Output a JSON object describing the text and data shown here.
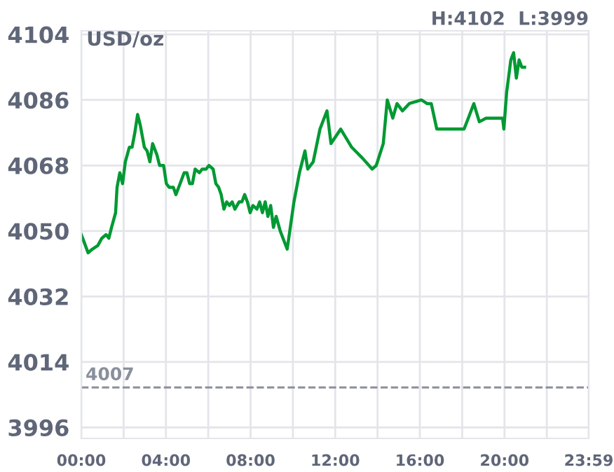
{
  "chart_data": {
    "type": "line",
    "ylabel": "USD/oz",
    "annotations": [
      "H:4102  L:3999"
    ],
    "x": [
      0,
      0.13,
      0.32,
      0.52,
      0.78,
      0.97,
      1.17,
      1.3,
      1.43,
      1.62,
      1.69,
      1.82,
      1.95,
      2.08,
      2.27,
      2.4,
      2.53,
      2.66,
      2.79,
      2.98,
      3.11,
      3.24,
      3.37,
      3.57,
      3.7,
      3.89,
      4.02,
      4.15,
      4.35,
      4.47,
      4.67,
      4.86,
      4.99,
      5.12,
      5.25,
      5.38,
      5.58,
      5.71,
      5.9,
      6.03,
      6.23,
      6.36,
      6.49,
      6.61,
      6.74,
      6.87,
      7.0,
      7.13,
      7.26,
      7.46,
      7.59,
      7.72,
      7.85,
      7.98,
      8.11,
      8.3,
      8.43,
      8.56,
      8.69,
      8.82,
      8.95,
      9.08,
      9.21,
      9.4,
      9.73,
      10.05,
      10.31,
      10.57,
      10.7,
      10.96,
      11.28,
      11.61,
      11.8,
      12.26,
      12.78,
      13.29,
      13.75,
      13.94,
      14.27,
      14.46,
      14.72,
      14.92,
      15.18,
      15.5,
      16.08,
      16.34,
      16.54,
      16.8,
      17.83,
      18.09,
      18.29,
      18.55,
      18.81,
      19.13,
      19.58,
      19.91,
      19.97,
      20.1,
      20.3,
      20.43,
      20.56,
      20.69,
      20.82,
      20.95
    ],
    "series": [
      {
        "color": "#009933",
        "values": [
          4049,
          4047,
          4044,
          4045,
          4046,
          4048,
          4049,
          4048,
          4051,
          4055,
          4062,
          4066,
          4063,
          4069,
          4073,
          4073,
          4077,
          4082,
          4079,
          4073,
          4072,
          4069,
          4074,
          4071,
          4068,
          4068,
          4063,
          4062,
          4062,
          4060,
          4063,
          4066,
          4066,
          4063,
          4063,
          4067,
          4066,
          4067,
          4067,
          4068,
          4067,
          4063,
          4062,
          4060,
          4056,
          4058,
          4057,
          4058,
          4056,
          4058,
          4058,
          4060,
          4058,
          4055,
          4057,
          4056,
          4058,
          4055,
          4058,
          4054,
          4057,
          4051,
          4054,
          4050,
          4045,
          4058,
          4066,
          4072,
          4067,
          4069,
          4078,
          4083,
          4074,
          4078,
          4073,
          4070,
          4067,
          4068,
          4074,
          4086,
          4081,
          4085,
          4083,
          4085,
          4086,
          4085,
          4085,
          4078,
          4078,
          4078,
          4081,
          4085,
          4080,
          4081,
          4081,
          4081,
          4078,
          4088,
          4097,
          4099,
          4092,
          4097,
          4095,
          4095
        ]
      }
    ],
    "xlim": [
      0,
      23.983
    ],
    "xticks": [
      {
        "value": 0,
        "label": "00:00"
      },
      {
        "value": 2,
        "label": null
      },
      {
        "value": 4,
        "label": "04:00"
      },
      {
        "value": 6,
        "label": null
      },
      {
        "value": 8,
        "label": "08:00"
      },
      {
        "value": 10,
        "label": null
      },
      {
        "value": 12,
        "label": "12:00"
      },
      {
        "value": 14,
        "label": null
      },
      {
        "value": 16,
        "label": "16:00"
      },
      {
        "value": 18,
        "label": null
      },
      {
        "value": 20,
        "label": "20:00"
      },
      {
        "value": 22,
        "label": null
      },
      {
        "value": 23.983,
        "label": "23:59"
      }
    ],
    "ylim": [
      3993,
      4105
    ],
    "yticks": [
      3996,
      4014,
      4032,
      4050,
      4068,
      4086,
      4104
    ],
    "ref_lines": [
      {
        "axis": "y",
        "value": 4007,
        "label": "4007",
        "color": "#8a8f9c",
        "line_style": "dashed"
      }
    ],
    "grid": true,
    "legend": false,
    "marker": "none",
    "line_style": "solid"
  }
}
